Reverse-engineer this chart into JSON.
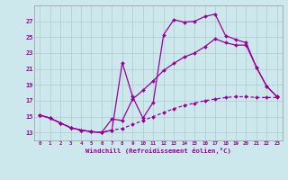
{
  "xlabel": "Windchill (Refroidissement éolien,°C)",
  "background_color": "#cce8ec",
  "grid_color": "#aacccc",
  "line_color": "#990099",
  "hours": [
    0,
    1,
    2,
    3,
    4,
    5,
    6,
    7,
    8,
    9,
    10,
    11,
    12,
    13,
    14,
    15,
    16,
    17,
    18,
    19,
    20,
    21,
    22,
    23
  ],
  "line1": [
    15.2,
    14.8,
    14.2,
    13.6,
    13.3,
    13.1,
    13.0,
    13.3,
    21.8,
    17.5,
    14.8,
    16.8,
    25.3,
    27.2,
    26.9,
    27.0,
    27.6,
    27.9,
    25.2,
    24.7,
    24.3,
    21.2,
    18.8,
    17.5
  ],
  "line2": [
    15.2,
    14.8,
    14.2,
    13.6,
    13.3,
    13.1,
    13.0,
    14.7,
    14.5,
    17.2,
    18.3,
    19.5,
    20.8,
    21.7,
    22.5,
    23.0,
    23.8,
    24.8,
    24.3,
    24.0,
    24.0,
    21.2,
    18.8,
    17.5
  ],
  "line3": [
    15.2,
    14.8,
    14.2,
    13.6,
    13.3,
    13.1,
    13.0,
    13.3,
    13.5,
    14.0,
    14.5,
    15.0,
    15.5,
    16.0,
    16.4,
    16.7,
    17.0,
    17.2,
    17.4,
    17.5,
    17.5,
    17.4,
    17.4,
    17.4
  ],
  "ylim": [
    12.0,
    29.0
  ],
  "yticks": [
    13,
    15,
    17,
    19,
    21,
    23,
    25,
    27
  ],
  "xticks": [
    0,
    1,
    2,
    3,
    4,
    5,
    6,
    7,
    8,
    9,
    10,
    11,
    12,
    13,
    14,
    15,
    16,
    17,
    18,
    19,
    20,
    21,
    22,
    23
  ]
}
